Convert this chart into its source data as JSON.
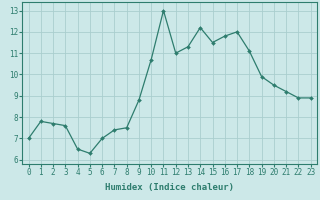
{
  "x": [
    0,
    1,
    2,
    3,
    4,
    5,
    6,
    7,
    8,
    9,
    10,
    11,
    12,
    13,
    14,
    15,
    16,
    17,
    18,
    19,
    20,
    21,
    22,
    23
  ],
  "y": [
    7.0,
    7.8,
    7.7,
    7.6,
    6.5,
    6.3,
    7.0,
    7.4,
    7.5,
    8.8,
    10.7,
    13.0,
    11.0,
    11.3,
    12.2,
    11.5,
    11.8,
    12.0,
    11.1,
    9.9,
    9.5,
    9.2,
    8.9,
    8.9
  ],
  "line_color": "#2e7d6e",
  "marker": "D",
  "marker_size": 2.0,
  "bg_color": "#cce8e8",
  "grid_color": "#aacece",
  "xlabel": "Humidex (Indice chaleur)",
  "xlim": [
    -0.5,
    23.5
  ],
  "ylim": [
    5.8,
    13.4
  ],
  "yticks": [
    6,
    7,
    8,
    9,
    10,
    11,
    12,
    13
  ],
  "xticks": [
    0,
    1,
    2,
    3,
    4,
    5,
    6,
    7,
    8,
    9,
    10,
    11,
    12,
    13,
    14,
    15,
    16,
    17,
    18,
    19,
    20,
    21,
    22,
    23
  ],
  "tick_fontsize": 5.5,
  "label_fontsize": 6.5
}
